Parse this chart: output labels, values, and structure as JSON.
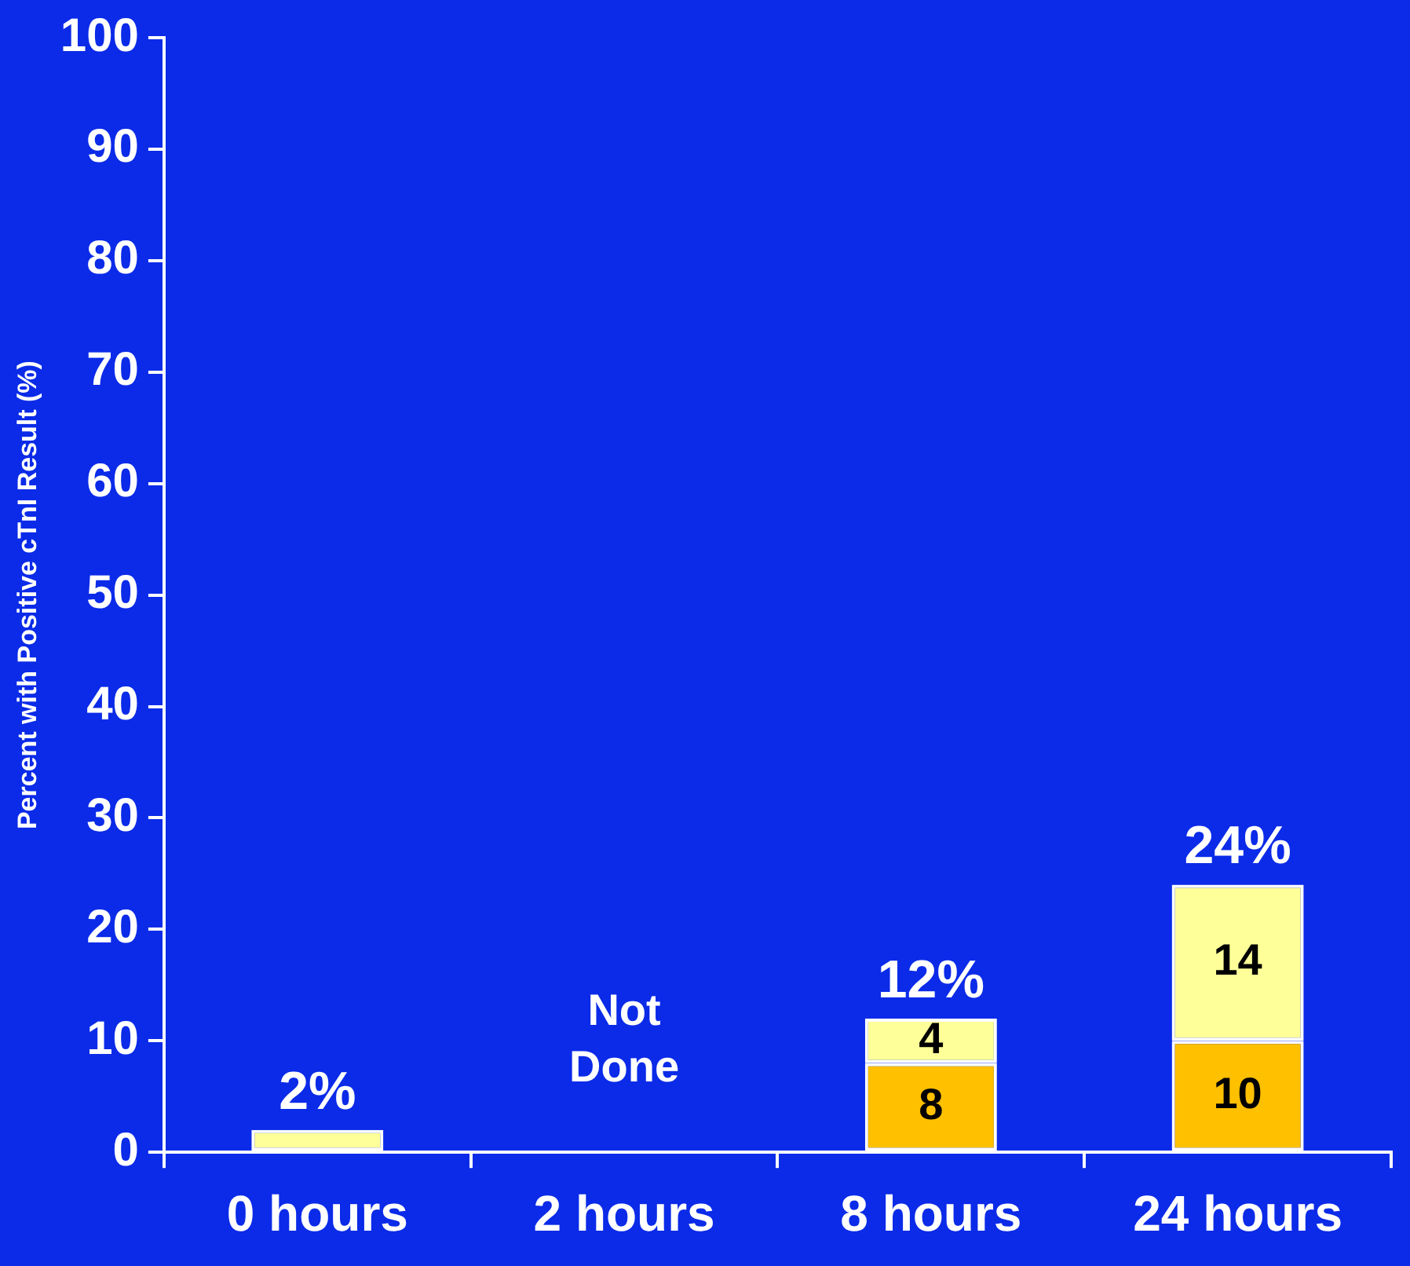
{
  "chart_data": {
    "type": "bar",
    "ylabel": "Percent with Positive cTnI Result (%)",
    "categories": [
      "0 hours",
      "2 hours",
      "8 hours",
      "24 hours"
    ],
    "stacked": true,
    "series": [
      {
        "color": "#ffc000",
        "values": [
          null,
          null,
          8,
          10
        ],
        "value_labels": [
          null,
          null,
          "8",
          "10"
        ]
      },
      {
        "color": "#ffff99",
        "values": [
          2,
          null,
          4,
          14
        ],
        "value_labels": [
          null,
          null,
          "4",
          "14"
        ]
      }
    ],
    "totals": [
      "2%",
      null,
      "12%",
      "24%"
    ],
    "annotations": [
      "Not Done"
    ],
    "ylim": [
      0,
      100
    ],
    "yticks": [
      0,
      10,
      20,
      30,
      40,
      50,
      60,
      70,
      80,
      90,
      100
    ],
    "grid": false,
    "legend": false
  }
}
